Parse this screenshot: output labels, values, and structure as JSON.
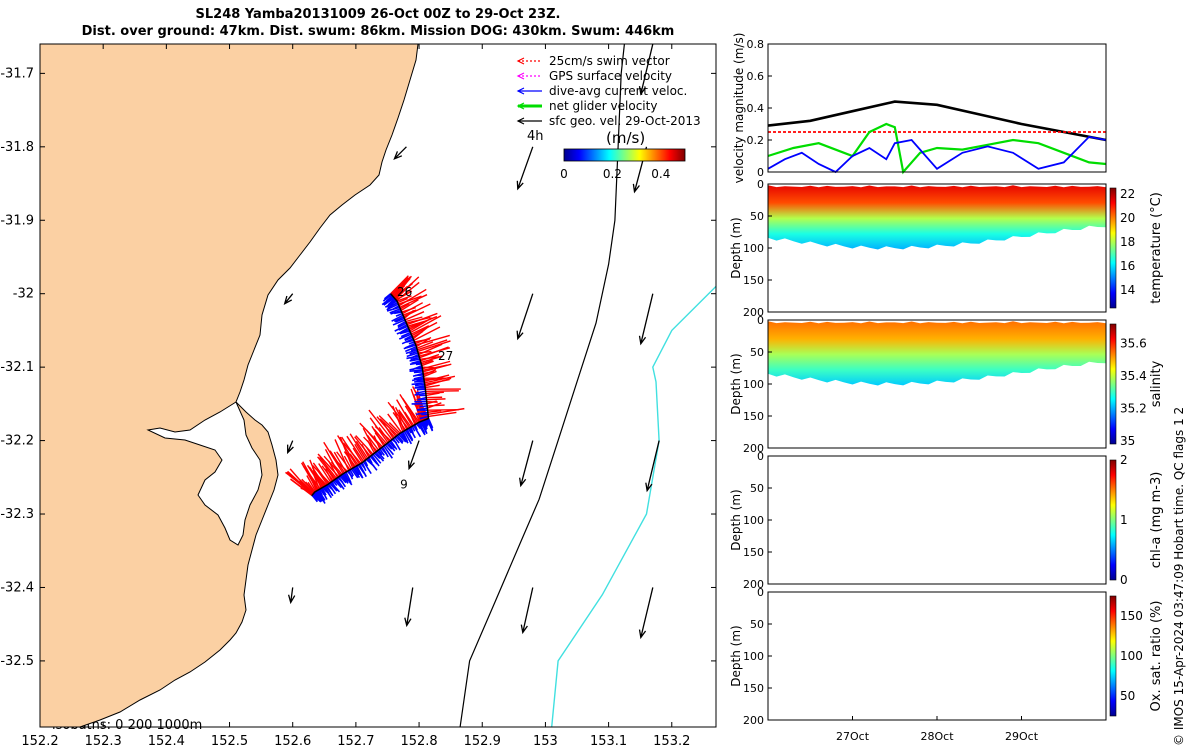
{
  "title": {
    "line1": "SL248 Yamba20131009 26-Oct 00Z to 29-Oct 23Z.",
    "line2": "Dist. over ground: 47km. Dist. swum: 86km. Mission DOG: 430km. Swum: 446km"
  },
  "credit": "© IMOS 15-Apr-2024 03:47:09 Hobart time. QC flags 1  2",
  "colors": {
    "land": "#fbd0a3",
    "isobath200": "#000000",
    "isobath1000": "#41e0e0",
    "swim": "#ff0000",
    "gps": "#ff00ff",
    "current": "#0000ff",
    "net": "#00dd00",
    "geo": "#000000"
  },
  "chart_data": [
    {
      "type": "map",
      "xlim": [
        152.2,
        153.27
      ],
      "ylim": [
        -32.59,
        -31.66
      ],
      "xticks": [
        "152.2",
        "152.3",
        "152.4",
        "152.5",
        "152.6",
        "152.7",
        "152.8",
        "152.9",
        "153",
        "153.1",
        "153.2"
      ],
      "yticks": [
        "-31.7",
        "-31.8",
        "-31.9",
        "-32",
        "-32.1",
        "-32.2",
        "-32.3",
        "-32.4",
        "-32.5"
      ],
      "legend": [
        {
          "label": "25cm/s swim vector",
          "color": "#ff0000"
        },
        {
          "label": "GPS surface velocity",
          "color": "#ff00ff"
        },
        {
          "label": "dive-avg current veloc.",
          "color": "#0000ff"
        },
        {
          "label": "net glider velocity",
          "color": "#00dd00"
        },
        {
          "label": "sfc geo. vel. 29-Oct-2013",
          "color": "#000000"
        }
      ],
      "legend_position": "top-right",
      "colorbar": {
        "label": "(m/s)",
        "ticks": [
          "0",
          "0.2",
          "0.4"
        ],
        "range": [
          0,
          0.5
        ]
      },
      "scale_label": "4h",
      "isobaths_label": "isobaths: 0   200  1000m",
      "day_labels": [
        {
          "text": "26",
          "lon": 152.765,
          "lat": -31.998
        },
        {
          "text": "27",
          "lon": 152.83,
          "lat": -32.085
        },
        {
          "text": "9",
          "lon": 152.77,
          "lat": -32.26
        }
      ],
      "track": [
        [
          152.755,
          -32.0
        ],
        [
          152.765,
          -32.01
        ],
        [
          152.78,
          -32.04
        ],
        [
          152.795,
          -32.07
        ],
        [
          152.805,
          -32.1
        ],
        [
          152.81,
          -32.13
        ],
        [
          152.815,
          -32.17
        ],
        [
          152.8,
          -32.175
        ],
        [
          152.77,
          -32.19
        ],
        [
          152.74,
          -32.21
        ],
        [
          152.71,
          -32.23
        ],
        [
          152.68,
          -32.245
        ],
        [
          152.655,
          -32.26
        ],
        [
          152.635,
          -32.27
        ],
        [
          152.63,
          -32.275
        ]
      ],
      "isobath_200": [
        [
          152.865,
          -32.59
        ],
        [
          152.88,
          -32.5
        ],
        [
          152.92,
          -32.42
        ],
        [
          152.96,
          -32.34
        ],
        [
          152.99,
          -32.28
        ],
        [
          153.02,
          -32.2
        ],
        [
          153.05,
          -32.12
        ],
        [
          153.08,
          -32.04
        ],
        [
          153.1,
          -31.96
        ],
        [
          153.11,
          -31.9
        ],
        [
          153.115,
          -31.8
        ],
        [
          153.12,
          -31.7
        ],
        [
          153.125,
          -31.66
        ]
      ],
      "isobath_1000": [
        [
          153.01,
          -32.59
        ],
        [
          153.02,
          -32.5
        ],
        [
          153.09,
          -32.41
        ],
        [
          153.16,
          -32.3
        ],
        [
          153.18,
          -32.2
        ],
        [
          153.175,
          -32.12
        ],
        [
          153.17,
          -32.1
        ],
        [
          153.2,
          -32.05
        ],
        [
          153.27,
          -31.99
        ]
      ],
      "geo_vectors": [
        {
          "lon": 152.98,
          "lat": -31.8,
          "u": -0.15,
          "v": -0.42
        },
        {
          "lon": 153.16,
          "lat": -31.8,
          "u": -0.12,
          "v": -0.45
        },
        {
          "lon": 153.17,
          "lat": -31.66,
          "u": -0.12,
          "v": -0.5
        },
        {
          "lon": 152.98,
          "lat": -32.0,
          "u": -0.15,
          "v": -0.45
        },
        {
          "lon": 153.17,
          "lat": -32.0,
          "u": -0.12,
          "v": -0.5
        },
        {
          "lon": 152.98,
          "lat": -32.2,
          "u": -0.12,
          "v": -0.45
        },
        {
          "lon": 153.18,
          "lat": -32.2,
          "u": -0.12,
          "v": -0.5
        },
        {
          "lon": 152.8,
          "lat": -32.2,
          "u": -0.1,
          "v": -0.28
        },
        {
          "lon": 152.98,
          "lat": -32.4,
          "u": -0.1,
          "v": -0.45
        },
        {
          "lon": 153.17,
          "lat": -32.4,
          "u": -0.12,
          "v": -0.5
        },
        {
          "lon": 152.79,
          "lat": -32.4,
          "u": -0.06,
          "v": -0.38
        },
        {
          "lon": 152.6,
          "lat": -32.4,
          "u": -0.02,
          "v": -0.15
        },
        {
          "lon": 152.6,
          "lat": -32.2,
          "u": -0.05,
          "v": -0.12
        },
        {
          "lon": 152.6,
          "lat": -32.0,
          "u": -0.08,
          "v": -0.1
        },
        {
          "lon": 152.78,
          "lat": -31.8,
          "u": -0.12,
          "v": -0.12
        }
      ]
    },
    {
      "type": "line",
      "ylabel": "velocity magnitude (m/s)",
      "ylim": [
        0,
        0.8
      ],
      "yticks": [
        "0",
        "0.2",
        "0.4",
        "0.6",
        "0.8"
      ],
      "xlim": [
        0,
        4
      ],
      "series": [
        {
          "color": "#000000",
          "x": [
            0,
            0.5,
            1,
            1.5,
            2,
            2.5,
            3,
            3.5,
            4
          ],
          "values": [
            0.29,
            0.32,
            0.38,
            0.44,
            0.42,
            0.36,
            0.3,
            0.25,
            0.2
          ]
        },
        {
          "color": "#ff0000",
          "x": [
            0,
            4
          ],
          "values": [
            0.25,
            0.25
          ]
        },
        {
          "color": "#00dd00",
          "x": [
            0,
            0.3,
            0.6,
            0.9,
            1.0,
            1.2,
            1.4,
            1.5,
            1.6,
            1.8,
            2.0,
            2.3,
            2.6,
            2.9,
            3.2,
            3.5,
            3.8,
            4.0
          ],
          "values": [
            0.1,
            0.15,
            0.18,
            0.12,
            0.1,
            0.25,
            0.3,
            0.28,
            0.0,
            0.12,
            0.15,
            0.14,
            0.17,
            0.2,
            0.18,
            0.12,
            0.06,
            0.05
          ]
        },
        {
          "color": "#0000ff",
          "x": [
            0,
            0.2,
            0.4,
            0.6,
            0.8,
            1.0,
            1.2,
            1.4,
            1.5,
            1.7,
            2.0,
            2.3,
            2.6,
            2.9,
            3.2,
            3.5,
            3.8,
            4.0
          ],
          "values": [
            0.02,
            0.08,
            0.12,
            0.05,
            0.0,
            0.1,
            0.15,
            0.08,
            0.18,
            0.2,
            0.02,
            0.12,
            0.16,
            0.12,
            0.02,
            0.06,
            0.22,
            0.2
          ]
        }
      ]
    },
    {
      "type": "heatmap",
      "ylabel": "Depth (m)",
      "clabel": "temperature (°C)",
      "yticks": [
        "0",
        "50",
        "100",
        "150",
        "200"
      ],
      "cticks": [
        "14",
        "16",
        "18",
        "20",
        "22"
      ],
      "crange": [
        12.5,
        22.5
      ],
      "profile": [
        {
          "d": 0,
          "v": 21.5
        },
        {
          "d": 30,
          "v": 20.5
        },
        {
          "d": 55,
          "v": 18
        },
        {
          "d": 80,
          "v": 16.5
        },
        {
          "d": 105,
          "v": 15.5
        }
      ]
    },
    {
      "type": "heatmap",
      "ylabel": "Depth (m)",
      "clabel": "salinity",
      "yticks": [
        "0",
        "50",
        "100",
        "150",
        "200"
      ],
      "cticks": [
        "35",
        "35.2",
        "35.4",
        "35.6"
      ],
      "crange": [
        34.98,
        35.72
      ],
      "profile": [
        {
          "d": 0,
          "v": 35.55
        },
        {
          "d": 30,
          "v": 35.5
        },
        {
          "d": 55,
          "v": 35.38
        },
        {
          "d": 80,
          "v": 35.3
        },
        {
          "d": 105,
          "v": 35.22
        }
      ]
    },
    {
      "type": "heatmap",
      "ylabel": "Depth (m)",
      "clabel": "chl-a (mg m-3)",
      "yticks": [
        "0",
        "50",
        "100",
        "150",
        "200"
      ],
      "cticks": [
        "0",
        "1",
        "2"
      ],
      "crange": [
        0,
        2
      ],
      "profile": []
    },
    {
      "type": "heatmap",
      "ylabel": "Depth (m)",
      "clabel": "Ox. sat. ratio (%)",
      "yticks": [
        "0",
        "50",
        "100",
        "150",
        "200"
      ],
      "cticks": [
        "50",
        "100",
        "150"
      ],
      "crange": [
        25,
        175
      ],
      "profile": []
    },
    {
      "type": "axis",
      "xticks": [
        "27Oct",
        "28Oct",
        "29Oct"
      ]
    }
  ]
}
